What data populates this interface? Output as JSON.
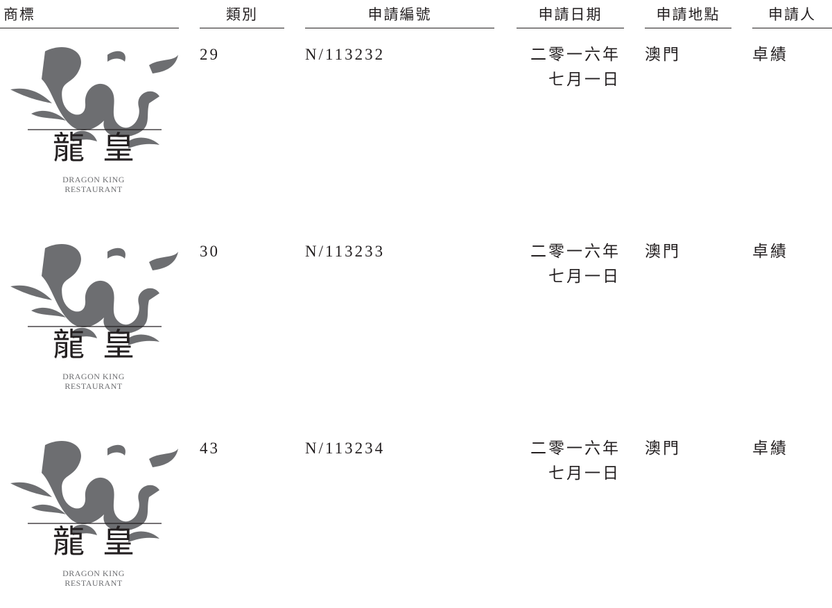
{
  "header": [
    "商標",
    "類別",
    "申請編號",
    "申請日期",
    "申請地點",
    "申請人"
  ],
  "rows": [
    {
      "trademark": {
        "chinese": "龍皇",
        "english_line1": "DRAGON KING",
        "english_line2": "RESTAURANT"
      },
      "class": "29",
      "number": "N/113232",
      "date_line1": "二零一六年",
      "date_line2": "七月一日",
      "place": "澳門",
      "applicant": "卓績"
    },
    {
      "trademark": {
        "chinese": "龍皇",
        "english_line1": "DRAGON KING",
        "english_line2": "RESTAURANT"
      },
      "class": "30",
      "number": "N/113233",
      "date_line1": "二零一六年",
      "date_line2": "七月一日",
      "place": "澳門",
      "applicant": "卓績"
    },
    {
      "trademark": {
        "chinese": "龍皇",
        "english_line1": "DRAGON KING",
        "english_line2": "RESTAURANT"
      },
      "class": "43",
      "number": "N/113234",
      "date_line1": "二零一六年",
      "date_line2": "七月一日",
      "place": "澳門",
      "applicant": "卓績"
    }
  ]
}
